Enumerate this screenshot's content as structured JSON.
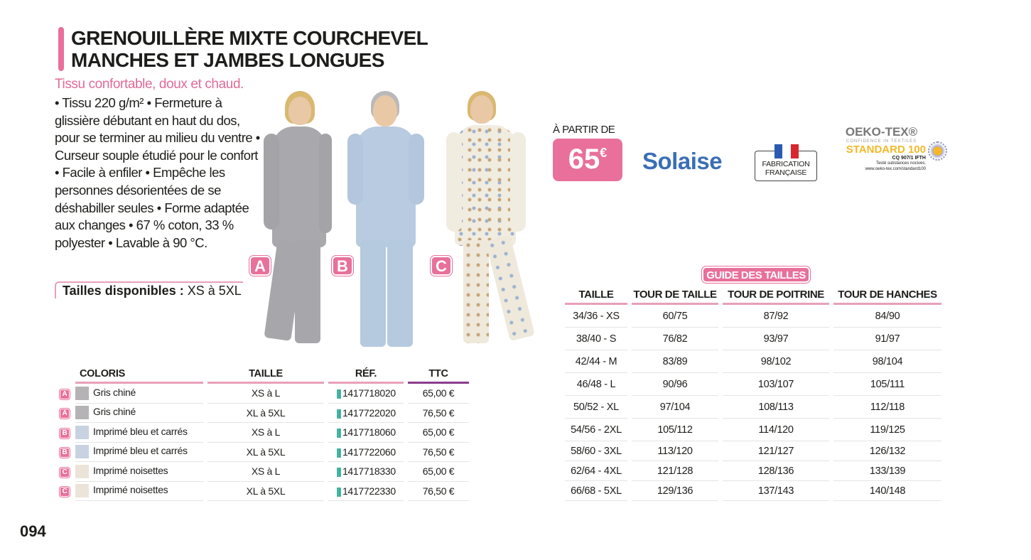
{
  "product": {
    "title_line1": "GRENOUILLÈRE MIXTE COURCHEVEL",
    "title_line2": "MANCHES ET JAMBES LONGUES",
    "subtitle": "Tissu confortable, doux et chaud.",
    "description": "• Tissu 220 g/m² • Fermeture à glissière débutant en haut du dos, pour se terminer au milieu du ventre • Curseur souple étudié pour le confort • Facile à enfiler • Empêche les personnes désorientées de se déshabiller seules • Forme adaptée aux changes • 67 % coton, 33 % polyester • Lavable à 90 °C.",
    "sizes_label": "Tailles disponibles :",
    "sizes_value": " XS à 5XL"
  },
  "models": [
    {
      "badge": "A",
      "color": "#a9a9ad"
    },
    {
      "badge": "B",
      "color": "#b9cbe0"
    },
    {
      "badge": "C",
      "color": "#f1ece0"
    }
  ],
  "price": {
    "from_label": "À PARTIR DE",
    "amount": "65",
    "currency": "€"
  },
  "logos": {
    "solaise": "Solaise",
    "fabrication": [
      "FABRICATION",
      "FRANÇAISE"
    ],
    "oeko": {
      "name": "OEKO-TEX®",
      "tagline": "CONFIDENCE IN TEXTILES",
      "standard": "STANDARD 100",
      "code": "CQ 907/1 IFTH",
      "tested": "Testé substances nocives.",
      "url": "www.oeko-tex.com/standard100"
    }
  },
  "variants_table": {
    "headers": [
      "COLORIS",
      "TAILLE",
      "RÉF.",
      "TTC"
    ],
    "rows": [
      {
        "badge": "A",
        "swatch": "#b5b3b5",
        "coloris": "Gris chiné",
        "taille": "XS à L",
        "ref": "1417718020",
        "ttc": "65,00 €"
      },
      {
        "badge": "A",
        "swatch": "#b5b3b5",
        "coloris": "Gris chiné",
        "taille": "XL à 5XL",
        "ref": "1417722020",
        "ttc": "76,50 €"
      },
      {
        "badge": "B",
        "swatch": "#c8d2e0",
        "coloris": "Imprimé bleu et carrés",
        "taille": "XS à L",
        "ref": "1417718060",
        "ttc": "65,00 €"
      },
      {
        "badge": "B",
        "swatch": "#c8d2e0",
        "coloris": "Imprimé bleu et carrés",
        "taille": "XL à 5XL",
        "ref": "1417722060",
        "ttc": "76,50 €"
      },
      {
        "badge": "C",
        "swatch": "#ece4d8",
        "coloris": "Imprimé noisettes",
        "taille": "XS à L",
        "ref": "1417718330",
        "ttc": "65,00 €"
      },
      {
        "badge": "C",
        "swatch": "#ece4d8",
        "coloris": "Imprimé noisettes",
        "taille": "XL à 5XL",
        "ref": "1417722330",
        "ttc": "76,50 €"
      }
    ]
  },
  "size_guide": {
    "title": "GUIDE DES TAILLES",
    "headers": [
      "TAILLE",
      "TOUR DE TAILLE",
      "TOUR DE POITRINE",
      "TOUR DE HANCHES"
    ],
    "rows": [
      [
        "34/36 - XS",
        "60/75",
        "87/92",
        "84/90"
      ],
      [
        "38/40 - S",
        "76/82",
        "93/97",
        "91/97"
      ],
      [
        "42/44 - M",
        "83/89",
        "98/102",
        "98/104"
      ],
      [
        "46/48 - L",
        "90/96",
        "103/107",
        "105/111"
      ],
      [
        "50/52 - XL",
        "97/104",
        "108/113",
        "112/118"
      ],
      [
        "54/56 - 2XL",
        "105/112",
        "114/120",
        "119/125"
      ],
      [
        "58/60 - 3XL",
        "113/120",
        "121/127",
        "126/132"
      ],
      [
        "62/64 - 4XL",
        "121/128",
        "128/136",
        "133/139"
      ],
      [
        "66/68 - 5XL",
        "129/136",
        "137/143",
        "140/148"
      ]
    ]
  },
  "page_number": "094",
  "colors": {
    "accent": "#e8709a",
    "ttc_rule": "#8a3d8c"
  }
}
